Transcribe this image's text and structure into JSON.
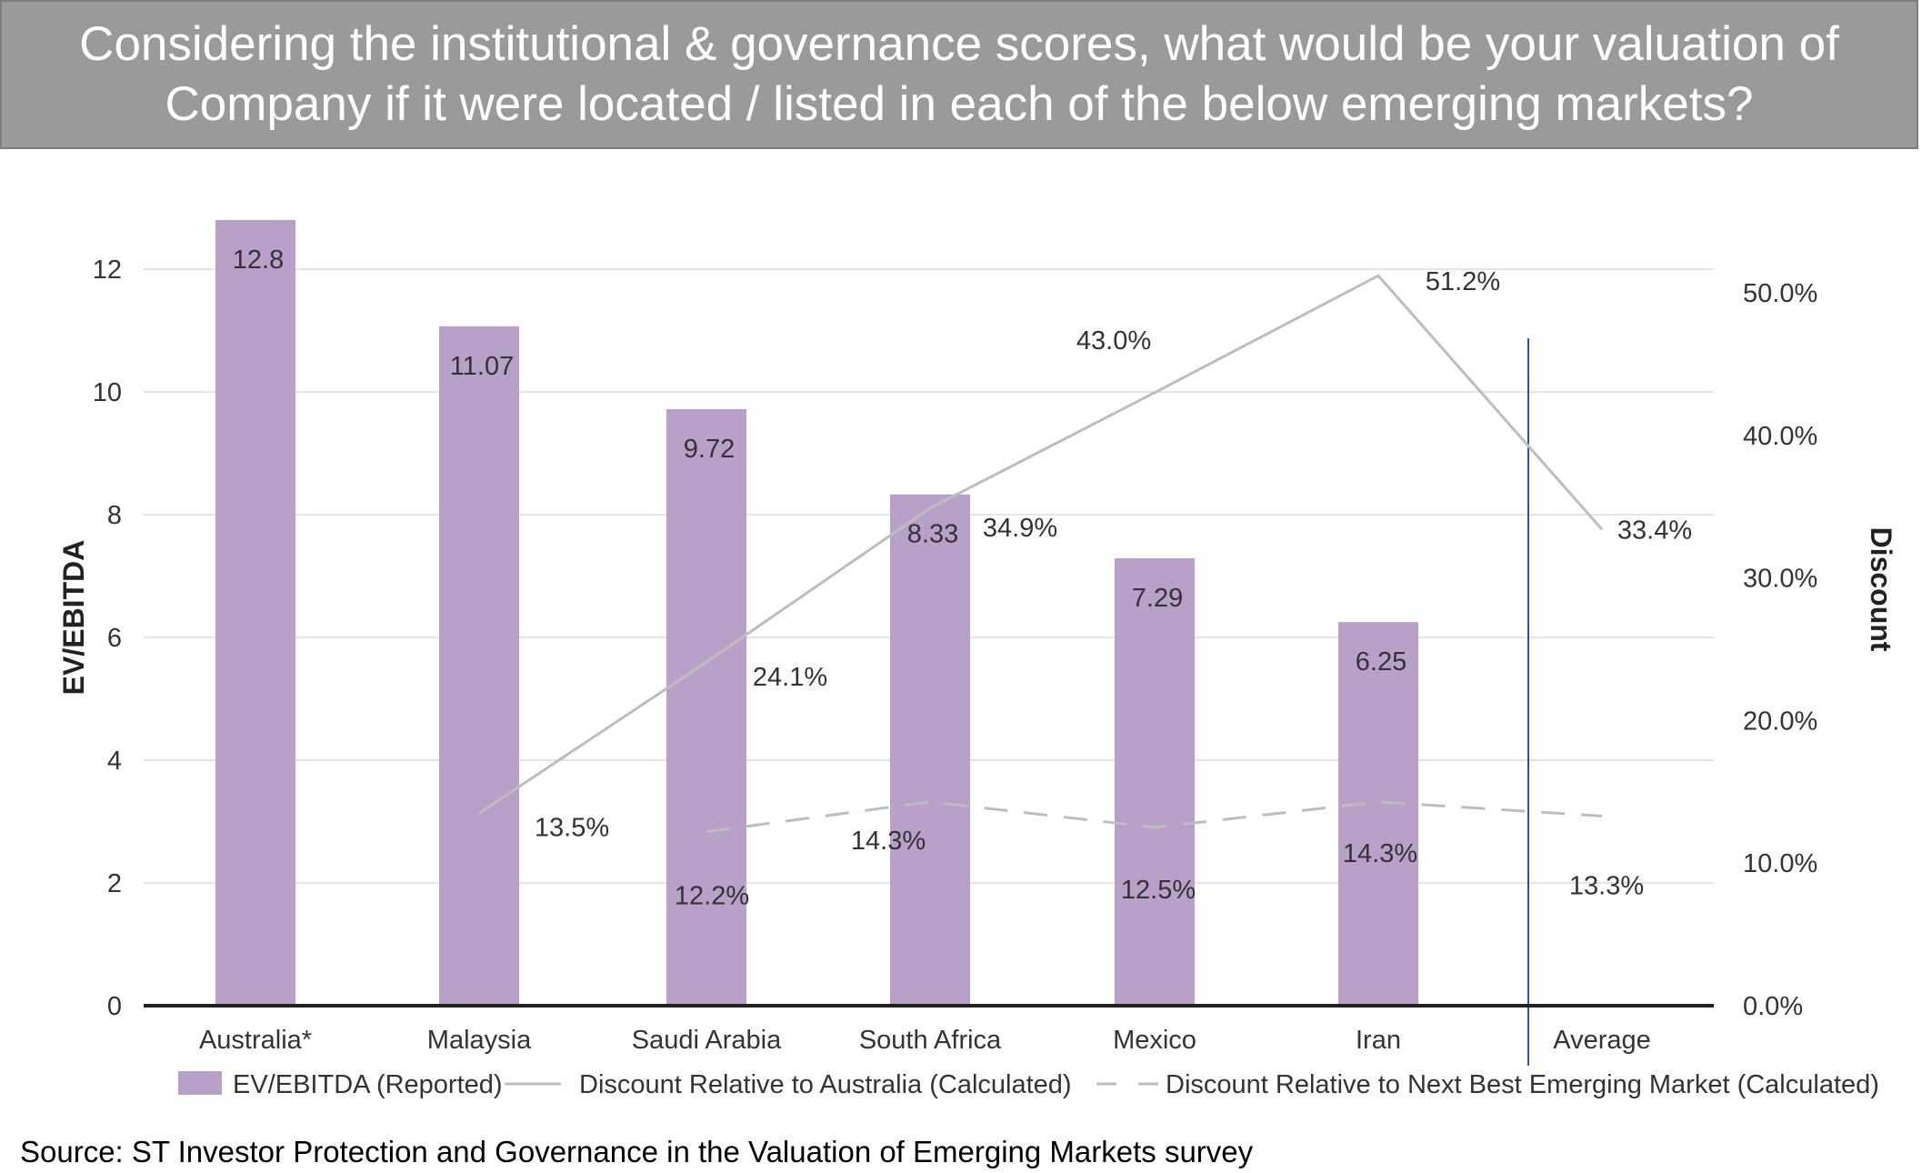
{
  "header": {
    "question": "Considering the institutional & governance scores, what would be your valuation of Company if it were located / listed in each of the below emerging markets?"
  },
  "chart_data": {
    "type": "bar",
    "categories": [
      "Australia*",
      "Malaysia",
      "Saudi Arabia",
      "South Africa",
      "Mexico",
      "Iran",
      "Average"
    ],
    "ylabel": "EV/EBITDA",
    "y2label": "Discount",
    "ylim": [
      0,
      12
    ],
    "yticks": [
      0,
      2,
      4,
      6,
      8,
      10,
      12
    ],
    "y2lim": [
      0,
      50
    ],
    "y2ticks": [
      "0.0%",
      "10.0%",
      "20.0%",
      "30.0%",
      "40.0%",
      "50.0%"
    ],
    "grid": true,
    "legend_position": "bottom",
    "series": [
      {
        "name": "EV/EBITDA (Reported)",
        "type": "bar",
        "axis": "left",
        "color": "#b8a0c9",
        "values": [
          12.8,
          11.07,
          9.72,
          8.33,
          7.29,
          6.25,
          null
        ],
        "labels": [
          "12.8",
          "11.07",
          "9.72",
          "8.33",
          "7.29",
          "6.25",
          ""
        ]
      },
      {
        "name": "Discount Relative to Australia (Calculated)",
        "type": "line",
        "style": "solid",
        "axis": "right",
        "color": "#bdbdbd",
        "values": [
          null,
          13.5,
          24.1,
          34.9,
          43.0,
          51.2,
          33.4
        ],
        "labels": [
          "",
          "13.5%",
          "24.1%",
          "34.9%",
          "43.0%",
          "51.2%",
          "33.4%"
        ]
      },
      {
        "name": "Discount Relative to Next Best Emerging Market (Calculated)",
        "type": "line",
        "style": "dashed",
        "axis": "right",
        "color": "#bdbdbd",
        "values": [
          null,
          null,
          12.2,
          14.3,
          12.5,
          14.3,
          13.3
        ],
        "labels": [
          "",
          "",
          "12.2%",
          "14.3%",
          "12.5%",
          "14.3%",
          "13.3%"
        ]
      }
    ]
  },
  "footer": {
    "source": "Source: ST Investor Protection and Governance in the Valuation of Emerging Markets survey"
  }
}
